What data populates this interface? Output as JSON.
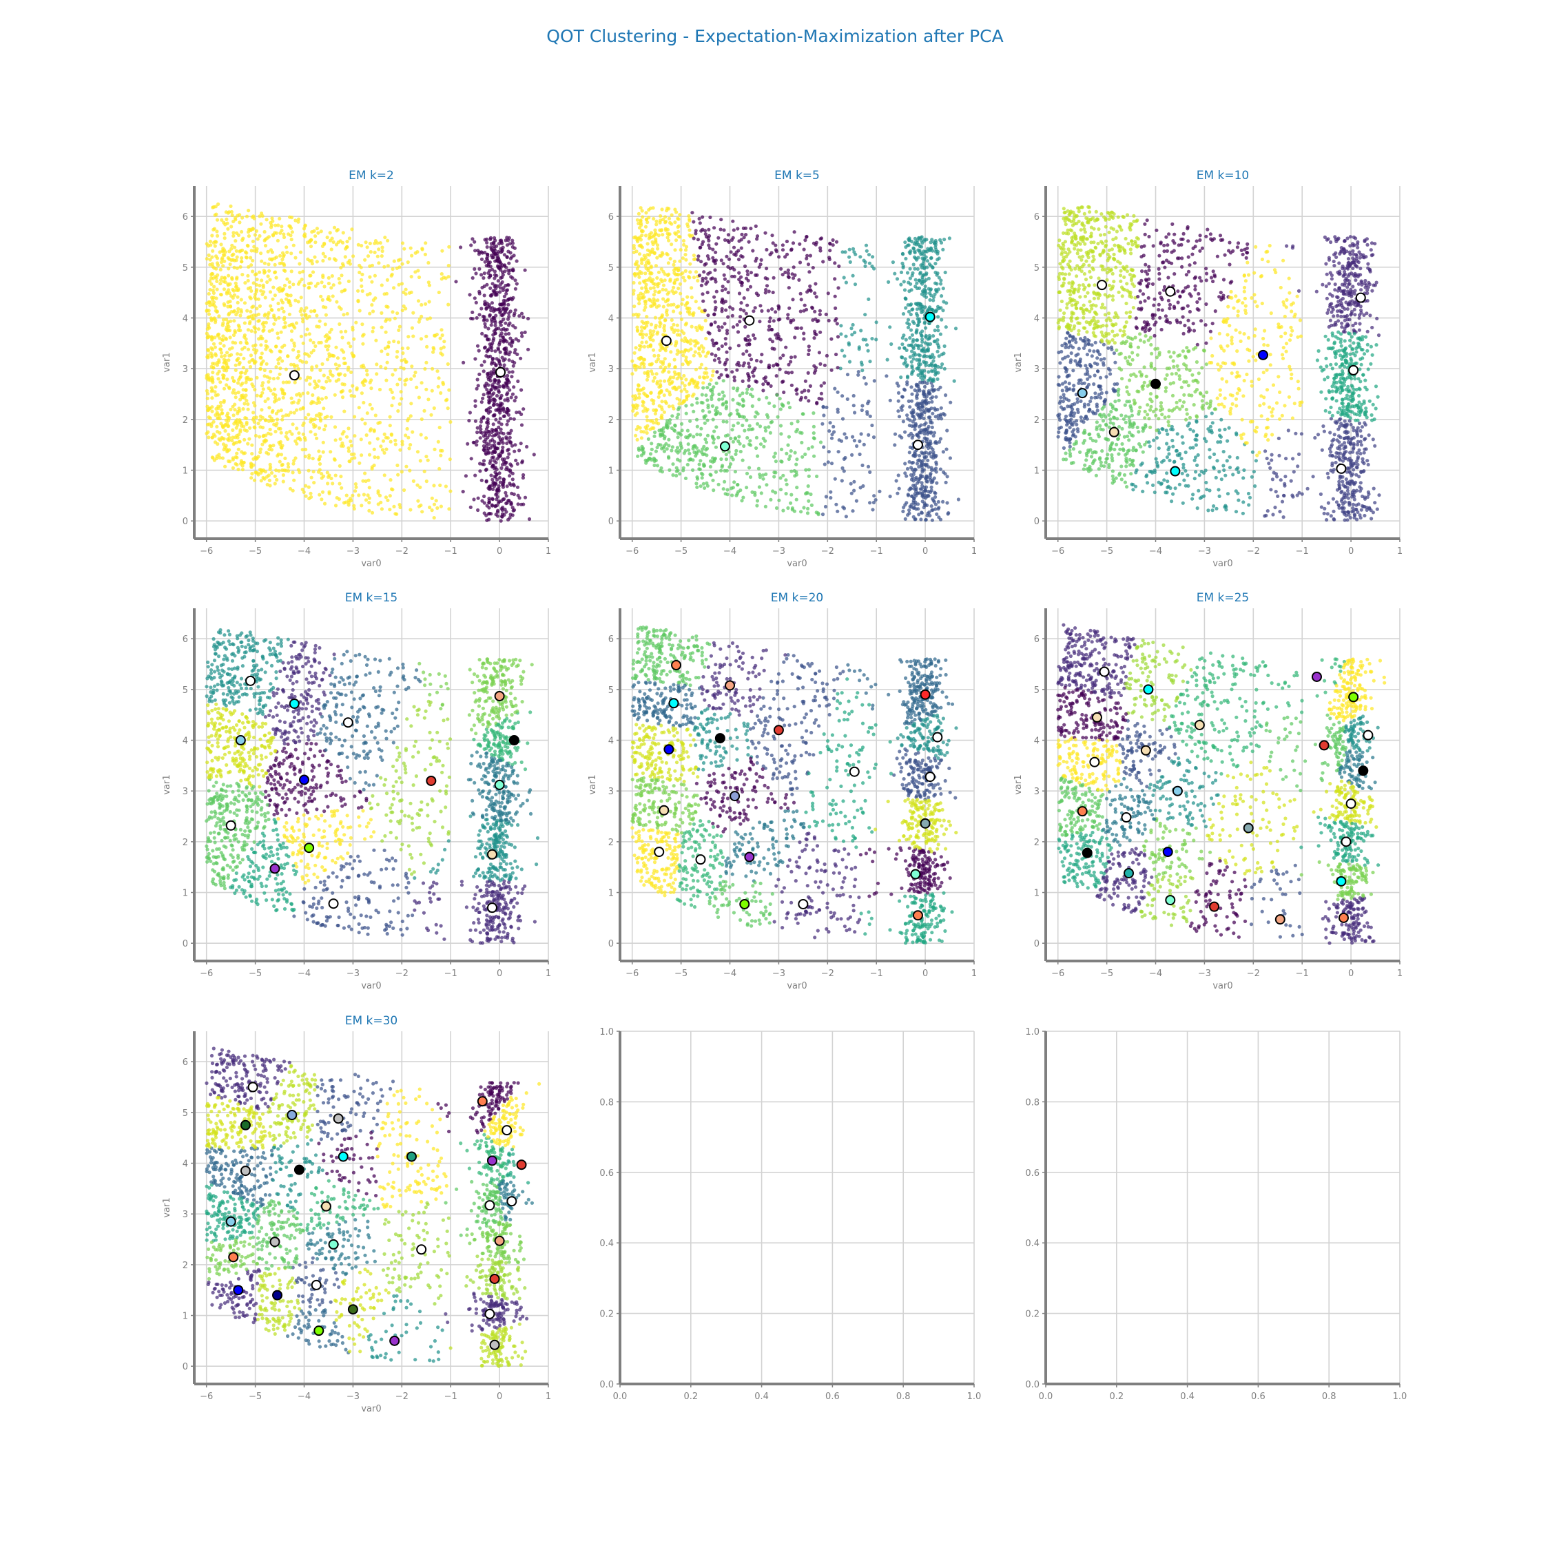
{
  "figure": {
    "title": "QOT Clustering - Expectation-Maximization after PCA",
    "title_color": "#1f77b4",
    "axis_color": "#7f7f7f",
    "grid_color": "#d3d3d3",
    "center_edge_color": "#000000"
  },
  "chart_data": [
    {
      "type": "scatter",
      "title": "EM k=2",
      "xlabel": "var0",
      "ylabel": "var1",
      "xlim": [
        -6.25,
        1.0
      ],
      "ylim": [
        -0.35,
        6.6
      ],
      "xticks": [
        "−6",
        "−5",
        "−4",
        "−3",
        "−2",
        "−1",
        "0",
        "1"
      ],
      "yticks": [
        "0",
        "1",
        "2",
        "3",
        "4",
        "5",
        "6"
      ],
      "grid": true,
      "cluster_colors": [
        "#fde725",
        "#440154"
      ],
      "regions": [
        {
          "x0": -6.0,
          "x1": -1.0,
          "y0": 0.0,
          "y1": 6.3
        },
        {
          "x0": -1.0,
          "x1": 0.75,
          "y0": 0.0,
          "y1": 5.6
        }
      ],
      "centers": [
        {
          "x": -4.2,
          "y": 2.87,
          "color": "#ffffff"
        },
        {
          "x": 0.02,
          "y": 2.93,
          "color": "#ffffff"
        }
      ]
    },
    {
      "type": "scatter",
      "title": "EM k=5",
      "xlabel": "var0",
      "ylabel": "var1",
      "xlim": [
        -6.25,
        1.0
      ],
      "ylim": [
        -0.35,
        6.6
      ],
      "xticks": [
        "−6",
        "−5",
        "−4",
        "−3",
        "−2",
        "−1",
        "0",
        "1"
      ],
      "yticks": [
        "0",
        "1",
        "2",
        "3",
        "4",
        "5",
        "6"
      ],
      "grid": true,
      "cluster_colors": [
        "#fde725",
        "#440154",
        "#5ec962",
        "#21918c",
        "#3b528b"
      ],
      "centers": [
        {
          "x": -5.3,
          "y": 3.55,
          "color": "#ffffff"
        },
        {
          "x": -3.6,
          "y": 3.95,
          "color": "#ffffff"
        },
        {
          "x": -4.1,
          "y": 1.47,
          "color": "#7fffd4"
        },
        {
          "x": 0.1,
          "y": 4.02,
          "color": "#00ffff"
        },
        {
          "x": -0.15,
          "y": 1.5,
          "color": "#ffffff"
        }
      ]
    },
    {
      "type": "scatter",
      "title": "EM k=10",
      "xlabel": "var0",
      "ylabel": "var1",
      "xlim": [
        -6.25,
        1.0
      ],
      "ylim": [
        -0.35,
        6.6
      ],
      "xticks": [
        "−6",
        "−5",
        "−4",
        "−3",
        "−2",
        "−1",
        "0",
        "1"
      ],
      "yticks": [
        "0",
        "1",
        "2",
        "3",
        "4",
        "5",
        "6"
      ],
      "grid": true,
      "cluster_colors": [
        "#bddf26",
        "#440154",
        "#7ad151",
        "#fde725",
        "#3b528b",
        "#5ec962",
        "#21918c",
        "#472d7b",
        "#22a884",
        "#414487"
      ],
      "centers": [
        {
          "x": -5.1,
          "y": 4.65,
          "color": "#ffffff"
        },
        {
          "x": -3.7,
          "y": 4.52,
          "color": "#ffffff"
        },
        {
          "x": -4.0,
          "y": 2.7,
          "color": "#000000"
        },
        {
          "x": -1.8,
          "y": 3.27,
          "color": "#0000ff"
        },
        {
          "x": -5.5,
          "y": 2.52,
          "color": "#87ceeb"
        },
        {
          "x": -4.85,
          "y": 1.75,
          "color": "#f5deb3"
        },
        {
          "x": -3.6,
          "y": 0.98,
          "color": "#00ffff"
        },
        {
          "x": 0.2,
          "y": 4.4,
          "color": "#ffffff"
        },
        {
          "x": 0.05,
          "y": 2.97,
          "color": "#ffffff"
        },
        {
          "x": -0.2,
          "y": 1.03,
          "color": "#ffffff"
        }
      ]
    },
    {
      "type": "scatter",
      "title": "EM k=15",
      "xlabel": "var0",
      "ylabel": "var1",
      "xlim": [
        -6.25,
        1.0
      ],
      "ylim": [
        -0.35,
        6.6
      ],
      "xticks": [
        "−6",
        "−5",
        "−4",
        "−3",
        "−2",
        "−1",
        "0",
        "1"
      ],
      "yticks": [
        "0",
        "1",
        "2",
        "3",
        "4",
        "5",
        "6"
      ],
      "grid": true,
      "cluster_colors": [
        "#21918c",
        "#472d7b",
        "#31688e",
        "#d2e21b",
        "#440154",
        "#5ec962",
        "#fde725",
        "#22a884",
        "#3b528b",
        "#a0da39",
        "#7ad151",
        "#35b779",
        "#2a788e"
      ],
      "centers": [
        {
          "x": -5.1,
          "y": 5.17,
          "color": "#ffffff"
        },
        {
          "x": -4.2,
          "y": 4.72,
          "color": "#00ffff"
        },
        {
          "x": -3.1,
          "y": 4.35,
          "color": "#ffffff"
        },
        {
          "x": -5.3,
          "y": 4.0,
          "color": "#87ceeb"
        },
        {
          "x": -4.0,
          "y": 3.22,
          "color": "#0000ff"
        },
        {
          "x": -5.5,
          "y": 2.32,
          "color": "#ffffff"
        },
        {
          "x": -3.9,
          "y": 1.88,
          "color": "#7fff00"
        },
        {
          "x": -4.6,
          "y": 1.47,
          "color": "#9932cc"
        },
        {
          "x": -3.4,
          "y": 0.78,
          "color": "#ffffff"
        },
        {
          "x": -1.4,
          "y": 3.2,
          "color": "#e03c31"
        },
        {
          "x": 0.0,
          "y": 4.87,
          "color": "#f4a582"
        },
        {
          "x": 0.3,
          "y": 4.0,
          "color": "#000000"
        },
        {
          "x": 0.0,
          "y": 3.12,
          "color": "#7fffd4"
        },
        {
          "x": -0.15,
          "y": 1.75,
          "color": "#f5deb3"
        },
        {
          "x": -0.15,
          "y": 0.7,
          "color": "#ffffff"
        }
      ]
    },
    {
      "type": "scatter",
      "title": "EM k=20",
      "xlabel": "var0",
      "ylabel": "var1",
      "xlim": [
        -6.25,
        1.0
      ],
      "ylim": [
        -0.35,
        6.6
      ],
      "xticks": [
        "−6",
        "−5",
        "−4",
        "−3",
        "−2",
        "−1",
        "0",
        "1"
      ],
      "yticks": [
        "0",
        "1",
        "2",
        "3",
        "4",
        "5",
        "6"
      ],
      "grid": true,
      "cluster_colors": [
        "#5ec962",
        "#472d7b",
        "#31688e",
        "#21918c",
        "#3b528b",
        "#d2e21b",
        "#440154",
        "#22a884",
        "#7ad151",
        "#fde725",
        "#35b779",
        "#2a788e"
      ],
      "centers": [
        {
          "x": -5.1,
          "y": 5.48,
          "color": "#ff7f50"
        },
        {
          "x": -4.0,
          "y": 5.08,
          "color": "#f4a582"
        },
        {
          "x": -5.15,
          "y": 4.73,
          "color": "#00ffff"
        },
        {
          "x": -4.2,
          "y": 4.04,
          "color": "#000000"
        },
        {
          "x": -3.0,
          "y": 4.2,
          "color": "#e03c31"
        },
        {
          "x": -5.25,
          "y": 3.82,
          "color": "#0000ff"
        },
        {
          "x": -3.9,
          "y": 2.9,
          "color": "#8c9fd6"
        },
        {
          "x": -1.45,
          "y": 3.38,
          "color": "#ffffff"
        },
        {
          "x": -5.35,
          "y": 2.62,
          "color": "#f5deb3"
        },
        {
          "x": -5.45,
          "y": 1.8,
          "color": "#ffffff"
        },
        {
          "x": -4.6,
          "y": 1.65,
          "color": "#ffffff"
        },
        {
          "x": -3.6,
          "y": 1.7,
          "color": "#9932cc"
        },
        {
          "x": -3.7,
          "y": 0.77,
          "color": "#7fff00"
        },
        {
          "x": -2.5,
          "y": 0.77,
          "color": "#ffffff"
        },
        {
          "x": 0.0,
          "y": 4.9,
          "color": "#ff2a2a"
        },
        {
          "x": 0.25,
          "y": 4.06,
          "color": "#ffffff"
        },
        {
          "x": 0.1,
          "y": 3.28,
          "color": "#ffffff"
        },
        {
          "x": 0.0,
          "y": 2.36,
          "color": "#87aab0"
        },
        {
          "x": -0.2,
          "y": 1.36,
          "color": "#7fffd4"
        },
        {
          "x": -0.15,
          "y": 0.55,
          "color": "#ff7f50"
        }
      ]
    },
    {
      "type": "scatter",
      "title": "EM k=25",
      "xlabel": "var0",
      "ylabel": "var1",
      "xlim": [
        -6.25,
        1.0
      ],
      "ylim": [
        -0.35,
        6.6
      ],
      "xticks": [
        "−6",
        "−5",
        "−4",
        "−3",
        "−2",
        "−1",
        "0",
        "1"
      ],
      "yticks": [
        "0",
        "1",
        "2",
        "3",
        "4",
        "5",
        "6"
      ],
      "grid": true,
      "cluster_colors": [
        "#472d7b",
        "#a0da39",
        "#440154",
        "#3b528b",
        "#35b779",
        "#fde725",
        "#21918c",
        "#5ec962",
        "#2a788e",
        "#d2e21b",
        "#22a884",
        "#7ad151"
      ],
      "centers": [
        {
          "x": -5.05,
          "y": 5.35,
          "color": "#ffffff"
        },
        {
          "x": -4.15,
          "y": 5.0,
          "color": "#00ffff"
        },
        {
          "x": -5.2,
          "y": 4.45,
          "color": "#f5deb3"
        },
        {
          "x": -4.2,
          "y": 3.8,
          "color": "#f5deb3"
        },
        {
          "x": -3.1,
          "y": 4.3,
          "color": "#f5deb3"
        },
        {
          "x": -5.25,
          "y": 3.57,
          "color": "#ffffff"
        },
        {
          "x": -3.55,
          "y": 3.0,
          "color": "#87ceeb"
        },
        {
          "x": -5.5,
          "y": 2.6,
          "color": "#ff7f50"
        },
        {
          "x": -4.6,
          "y": 2.48,
          "color": "#ffffff"
        },
        {
          "x": -2.1,
          "y": 2.27,
          "color": "#87aab0"
        },
        {
          "x": -5.4,
          "y": 1.78,
          "color": "#000000"
        },
        {
          "x": -3.75,
          "y": 1.8,
          "color": "#0000ff"
        },
        {
          "x": -4.55,
          "y": 1.38,
          "color": "#20b2aa"
        },
        {
          "x": -3.7,
          "y": 0.85,
          "color": "#7fffd4"
        },
        {
          "x": -2.8,
          "y": 0.72,
          "color": "#e03c31"
        },
        {
          "x": -1.45,
          "y": 0.47,
          "color": "#f4a582"
        },
        {
          "x": -0.7,
          "y": 5.25,
          "color": "#9932cc"
        },
        {
          "x": 0.05,
          "y": 4.85,
          "color": "#7fff00"
        },
        {
          "x": 0.35,
          "y": 4.1,
          "color": "#ffffff"
        },
        {
          "x": -0.55,
          "y": 3.9,
          "color": "#e03c31"
        },
        {
          "x": 0.25,
          "y": 3.4,
          "color": "#000000"
        },
        {
          "x": 0.0,
          "y": 2.75,
          "color": "#ffffff"
        },
        {
          "x": -0.1,
          "y": 2.0,
          "color": "#ffffff"
        },
        {
          "x": -0.2,
          "y": 1.22,
          "color": "#00ffff"
        },
        {
          "x": -0.15,
          "y": 0.5,
          "color": "#ff7f50"
        }
      ]
    },
    {
      "type": "scatter",
      "title": "EM k=30",
      "xlabel": "var0",
      "ylabel": "var1",
      "xlim": [
        -6.25,
        1.0
      ],
      "ylim": [
        -0.35,
        6.6
      ],
      "xticks": [
        "−6",
        "−5",
        "−4",
        "−3",
        "−2",
        "−1",
        "0",
        "1"
      ],
      "yticks": [
        "0",
        "1",
        "2",
        "3",
        "4",
        "5",
        "6"
      ],
      "grid": true,
      "cluster_colors": [
        "#472d7b",
        "#bddf26",
        "#3b528b",
        "#d2e21b",
        "#31688e",
        "#21918c",
        "#440154",
        "#fde725",
        "#35b779",
        "#22a884",
        "#5ec962",
        "#2a788e",
        "#7ad151",
        "#a0da39"
      ],
      "centers": [
        {
          "x": -5.05,
          "y": 5.5,
          "color": "#ffffff"
        },
        {
          "x": -4.25,
          "y": 4.95,
          "color": "#87aadd"
        },
        {
          "x": -3.3,
          "y": 4.88,
          "color": "#c0c0c0"
        },
        {
          "x": -5.2,
          "y": 4.75,
          "color": "#1a6b2a"
        },
        {
          "x": -5.2,
          "y": 3.85,
          "color": "#c0c0c0"
        },
        {
          "x": -4.1,
          "y": 3.87,
          "color": "#000000"
        },
        {
          "x": -3.2,
          "y": 4.13,
          "color": "#00ffff"
        },
        {
          "x": -1.8,
          "y": 4.13,
          "color": "#20a080"
        },
        {
          "x": -3.55,
          "y": 3.15,
          "color": "#f5deb3"
        },
        {
          "x": -5.5,
          "y": 2.85,
          "color": "#87ceeb"
        },
        {
          "x": -4.6,
          "y": 2.45,
          "color": "#c0c0c0"
        },
        {
          "x": -3.4,
          "y": 2.4,
          "color": "#7fffd4"
        },
        {
          "x": -5.45,
          "y": 2.15,
          "color": "#ff7f50"
        },
        {
          "x": -1.6,
          "y": 2.3,
          "color": "#ffffff"
        },
        {
          "x": -5.35,
          "y": 1.5,
          "color": "#0000ff"
        },
        {
          "x": -4.55,
          "y": 1.4,
          "color": "#00008b"
        },
        {
          "x": -3.75,
          "y": 1.6,
          "color": "#ffffff"
        },
        {
          "x": -3.0,
          "y": 1.12,
          "color": "#3b6b1a"
        },
        {
          "x": -3.7,
          "y": 0.7,
          "color": "#7fff00"
        },
        {
          "x": -2.15,
          "y": 0.5,
          "color": "#9932cc"
        },
        {
          "x": -0.35,
          "y": 5.22,
          "color": "#ff7f50"
        },
        {
          "x": 0.15,
          "y": 4.65,
          "color": "#ffffff"
        },
        {
          "x": -0.15,
          "y": 4.05,
          "color": "#9932cc"
        },
        {
          "x": 0.45,
          "y": 3.97,
          "color": "#e03c31"
        },
        {
          "x": -0.2,
          "y": 3.17,
          "color": "#ffffff"
        },
        {
          "x": 0.25,
          "y": 3.25,
          "color": "#ffffff"
        },
        {
          "x": 0.0,
          "y": 2.47,
          "color": "#f4a582"
        },
        {
          "x": -0.1,
          "y": 1.72,
          "color": "#e03c31"
        },
        {
          "x": -0.2,
          "y": 1.03,
          "color": "#ffffff"
        },
        {
          "x": -0.1,
          "y": 0.42,
          "color": "#c0c0c0"
        }
      ]
    },
    {
      "type": "scatter",
      "title": "",
      "xlabel": "",
      "ylabel": "",
      "xlim": [
        0.0,
        1.0
      ],
      "ylim": [
        0.0,
        1.0
      ],
      "xticks": [
        "0.0",
        "0.2",
        "0.4",
        "0.6",
        "0.8",
        "1.0"
      ],
      "yticks": [
        "0.0",
        "0.2",
        "0.4",
        "0.6",
        "0.8",
        "1.0"
      ],
      "grid": true,
      "empty": true
    },
    {
      "type": "scatter",
      "title": "",
      "xlabel": "",
      "ylabel": "",
      "xlim": [
        0.0,
        1.0
      ],
      "ylim": [
        0.0,
        1.0
      ],
      "xticks": [
        "0.0",
        "0.2",
        "0.4",
        "0.6",
        "0.8",
        "1.0"
      ],
      "yticks": [
        "0.0",
        "0.2",
        "0.4",
        "0.6",
        "0.8",
        "1.0"
      ],
      "grid": true,
      "empty": true
    }
  ]
}
